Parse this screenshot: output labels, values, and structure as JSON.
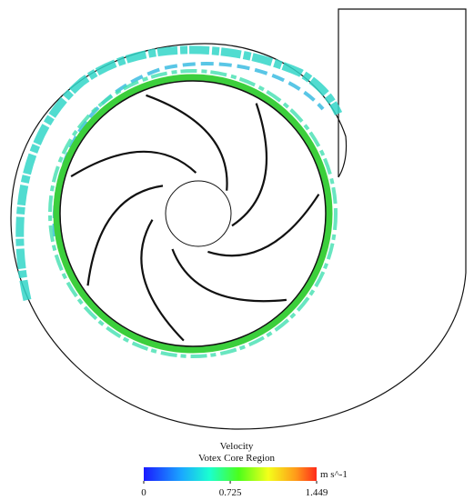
{
  "legend": {
    "title": "Velocity",
    "subtitle": "Votex Core Region",
    "unit": "m s^-1",
    "ticks": [
      0,
      0.725,
      1.449
    ]
  }
}
